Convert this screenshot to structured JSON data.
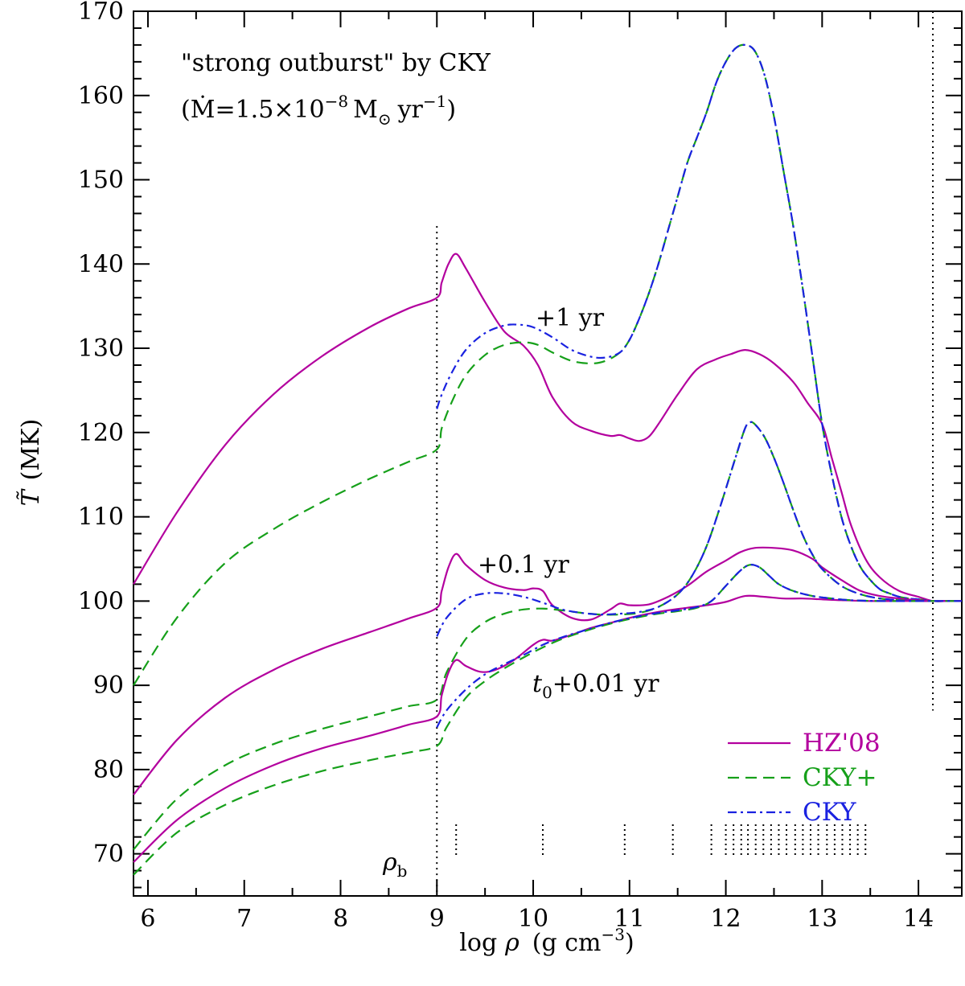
{
  "chart_data": {
    "type": "line",
    "title_line1": "\"strong outburst\" by CKY",
    "title_line2_prefix": "(",
    "title_mdot": "Ṁ",
    "title_eq": "=1.5×10",
    "title_exp": "−8",
    "title_msun": "M",
    "title_msun_sub": "⊙",
    "title_yr": "yr",
    "title_yr_exp": "−1",
    "title_close": ")",
    "xlabel_prefix": "log",
    "xlabel_rho": "ρ",
    "xlabel_units": "(g cm",
    "xlabel_exp": "−3",
    "xlabel_close": ")",
    "ylabel_symbol": "T̃",
    "ylabel_units": "(MK)",
    "xlim": [
      5.85,
      14.45
    ],
    "ylim": [
      65,
      170
    ],
    "x_ticks": [
      "6",
      "7",
      "8",
      "9",
      "10",
      "11",
      "12",
      "13",
      "14"
    ],
    "y_ticks": [
      "70",
      "80",
      "90",
      "100",
      "110",
      "120",
      "130",
      "140",
      "150",
      "160",
      "170"
    ],
    "annotations": {
      "t1": "+1 yr",
      "t01": "+0.1 yr",
      "t001_t": "t",
      "t001_sub": "0",
      "t001_rest": "+0.01 yr",
      "rho_b": "ρ",
      "rho_b_sub": "b"
    },
    "vlines_x": [
      9.0,
      14.15
    ],
    "ticks_rho_x": [
      9.2,
      10.1,
      10.95,
      11.45,
      11.85,
      12.0,
      12.08,
      12.16,
      12.23,
      12.31,
      12.39,
      12.47,
      12.55,
      12.63,
      12.72,
      12.8,
      12.88,
      12.96,
      13.05,
      13.13,
      13.21,
      13.29,
      13.37,
      13.45
    ],
    "legend": [
      {
        "label": "HZ'08",
        "color": "#b3009e",
        "style": "solid"
      },
      {
        "label": "CKY+",
        "color": "#16a01a",
        "style": "dashed"
      },
      {
        "label": "CKY",
        "color": "#1a22e0",
        "style": "dashdot"
      }
    ],
    "series": [
      {
        "name": "HZ'08 +1 yr",
        "style": "solid",
        "color": "#b3009e",
        "x": [
          5.85,
          6.3,
          6.8,
          7.3,
          7.8,
          8.3,
          8.7,
          9.0,
          9.05,
          9.12,
          9.2,
          9.3,
          9.5,
          9.7,
          9.9,
          10.05,
          10.2,
          10.4,
          10.6,
          10.8,
          10.9,
          11.0,
          11.1,
          11.2,
          11.3,
          11.5,
          11.7,
          11.9,
          12.05,
          12.2,
          12.35,
          12.5,
          12.7,
          12.85,
          13.0,
          13.1,
          13.2,
          13.3,
          13.45,
          13.6,
          13.8,
          14.0,
          14.15,
          14.3,
          14.45
        ],
        "y": [
          102,
          110.5,
          118.5,
          124.5,
          129,
          132.5,
          134.7,
          136,
          137.8,
          140,
          141.2,
          139.5,
          135.5,
          132,
          130.3,
          128,
          124.2,
          121.3,
          120.2,
          119.6,
          119.7,
          119.3,
          119,
          119.5,
          121,
          124.5,
          127.5,
          128.7,
          129.3,
          129.8,
          129.3,
          128.2,
          126,
          123.5,
          121,
          117,
          113,
          109,
          105,
          102.8,
          101.2,
          100.5,
          100,
          100,
          100
        ]
      },
      {
        "name": "CKY+ +1 yr",
        "style": "dashed",
        "color": "#16a01a",
        "x": [
          5.85,
          6.3,
          6.8,
          7.3,
          7.8,
          8.3,
          8.7,
          9.0,
          9.05,
          9.15,
          9.3,
          9.5,
          9.7,
          9.9,
          10.05,
          10.2,
          10.4,
          10.6,
          10.75,
          10.9,
          11.0,
          11.1,
          11.2,
          11.3,
          11.4,
          11.5,
          11.6,
          11.7,
          11.8,
          11.9,
          12.0,
          12.1,
          12.2,
          12.3,
          12.4,
          12.5,
          12.6,
          12.7,
          12.8,
          12.9,
          13.0,
          13.1,
          13.2,
          13.3,
          13.4,
          13.5,
          13.6,
          13.7,
          13.8,
          13.9,
          14.0,
          14.15,
          14.3,
          14.45
        ],
        "y": [
          90,
          98,
          104.5,
          108.5,
          111.7,
          114.5,
          116.5,
          118,
          120.5,
          123.5,
          126.8,
          129.2,
          130.4,
          130.7,
          130.4,
          129.5,
          128.5,
          128.2,
          128.5,
          129.5,
          131,
          133.5,
          136.5,
          140,
          144,
          148,
          152,
          155,
          158,
          161.5,
          164,
          165.6,
          166,
          165.3,
          162.5,
          157.5,
          151,
          144.5,
          137,
          129,
          121,
          115,
          110,
          106.5,
          104,
          102.5,
          101.4,
          100.9,
          100.5,
          100.3,
          100.2,
          100,
          100,
          100
        ]
      },
      {
        "name": "CKY +1 yr",
        "style": "dashdot",
        "color": "#1a22e0",
        "x": [
          9.0,
          9.05,
          9.15,
          9.3,
          9.5,
          9.7,
          9.85,
          10.0,
          10.2,
          10.4,
          10.6,
          10.75,
          10.9,
          11.0,
          11.1,
          11.2,
          11.3,
          11.4,
          11.5,
          11.6,
          11.7,
          11.8,
          11.9,
          12.0,
          12.1,
          12.2,
          12.3,
          12.4,
          12.5,
          12.6,
          12.7,
          12.8,
          12.9,
          13.0,
          13.1,
          13.2,
          13.3,
          13.4,
          13.5,
          13.6,
          13.7,
          13.8,
          13.9,
          14.0,
          14.15,
          14.3,
          14.45
        ],
        "y": [
          122.8,
          124.5,
          127,
          129.8,
          131.8,
          132.7,
          132.8,
          132.5,
          131.3,
          129.8,
          129,
          128.9,
          129.5,
          131,
          133.5,
          136.5,
          140,
          144,
          148,
          152,
          155,
          158,
          161.5,
          164,
          165.6,
          166,
          165.3,
          162.5,
          157.5,
          151,
          144.5,
          137,
          129,
          121,
          115,
          110,
          106.5,
          104,
          102.5,
          101.4,
          100.9,
          100.5,
          100.3,
          100.2,
          100,
          100,
          100
        ]
      },
      {
        "name": "HZ'08 +0.1 yr",
        "style": "solid",
        "color": "#b3009e",
        "x": [
          5.85,
          6.3,
          6.8,
          7.3,
          7.8,
          8.3,
          8.7,
          9.0,
          9.05,
          9.12,
          9.2,
          9.3,
          9.5,
          9.7,
          9.9,
          10.0,
          10.1,
          10.2,
          10.4,
          10.6,
          10.8,
          10.9,
          11.0,
          11.2,
          11.4,
          11.6,
          11.8,
          12.0,
          12.15,
          12.3,
          12.5,
          12.7,
          12.9,
          13.0,
          13.2,
          13.4,
          13.6,
          13.8,
          14.0,
          14.15,
          14.3,
          14.45
        ],
        "y": [
          77,
          83.5,
          88.5,
          91.8,
          94.3,
          96.3,
          97.9,
          99.2,
          101.2,
          104,
          105.6,
          104.3,
          102.5,
          101.6,
          101.3,
          101.5,
          101.2,
          99.5,
          98,
          97.8,
          99,
          99.7,
          99.5,
          99.6,
          100.5,
          101.8,
          103.5,
          104.8,
          105.8,
          106.3,
          106.3,
          106,
          105,
          104,
          102.5,
          101.2,
          100.6,
          100.3,
          100.1,
          100,
          100,
          100
        ]
      },
      {
        "name": "CKY+ +0.1 yr",
        "style": "dashed",
        "color": "#16a01a",
        "x": [
          5.85,
          6.3,
          6.8,
          7.3,
          7.8,
          8.3,
          8.7,
          9.0,
          9.1,
          9.3,
          9.5,
          9.7,
          9.9,
          10.1,
          10.3,
          10.5,
          10.7,
          10.9,
          11.1,
          11.3,
          11.5,
          11.65,
          11.8,
          11.95,
          12.1,
          12.2,
          12.25,
          12.3,
          12.4,
          12.5,
          12.6,
          12.7,
          12.8,
          12.9,
          13.0,
          13.2,
          13.4,
          13.6,
          13.8,
          14.0,
          14.15,
          14.3,
          14.45
        ],
        "y": [
          70.5,
          76.5,
          80.5,
          83,
          84.8,
          86.3,
          87.5,
          88.3,
          91.5,
          95.5,
          97.5,
          98.5,
          99,
          99.1,
          98.9,
          98.6,
          98.4,
          98.4,
          98.6,
          99.3,
          100.8,
          103,
          106.5,
          111.5,
          117,
          120.5,
          121.2,
          121,
          119.5,
          117,
          114,
          110.8,
          107.8,
          105.5,
          103.8,
          101.8,
          100.8,
          100.3,
          100.1,
          100,
          100,
          100,
          100
        ]
      },
      {
        "name": "CKY +0.1 yr",
        "style": "dashdot",
        "color": "#1a22e0",
        "x": [
          9.0,
          9.1,
          9.3,
          9.5,
          9.7,
          9.9,
          10.1,
          10.3,
          10.5,
          10.7,
          10.9,
          11.1,
          11.3,
          11.5,
          11.65,
          11.8,
          11.95,
          12.1,
          12.2,
          12.25,
          12.3,
          12.4,
          12.5,
          12.6,
          12.7,
          12.8,
          12.9,
          13.0,
          13.2,
          13.4,
          13.6,
          13.8,
          14.0,
          14.15,
          14.3,
          14.45
        ],
        "y": [
          95.8,
          98,
          100.2,
          100.9,
          100.9,
          100.5,
          99.8,
          99,
          98.6,
          98.4,
          98.5,
          98.7,
          99.3,
          100.8,
          103,
          106.5,
          111.5,
          117,
          120.5,
          121.2,
          121,
          119.5,
          117,
          114,
          110.8,
          107.8,
          105.5,
          103.8,
          101.8,
          100.8,
          100.3,
          100.1,
          100,
          100,
          100,
          100
        ]
      },
      {
        "name": "HZ'08 t0+0.01 yr",
        "style": "solid",
        "color": "#b3009e",
        "x": [
          5.85,
          6.3,
          6.8,
          7.3,
          7.8,
          8.3,
          8.7,
          9.0,
          9.05,
          9.12,
          9.2,
          9.3,
          9.45,
          9.6,
          9.8,
          10.0,
          10.1,
          10.2,
          10.4,
          10.6,
          10.8,
          11.0,
          11.2,
          11.4,
          11.6,
          11.8,
          12.0,
          12.2,
          12.4,
          12.6,
          12.8,
          13.0,
          13.2,
          13.5,
          13.8,
          14.15,
          14.45
        ],
        "y": [
          69,
          74,
          77.8,
          80.5,
          82.5,
          84,
          85.3,
          86.3,
          88.8,
          91.5,
          93,
          92.3,
          91.6,
          91.8,
          93,
          94.8,
          95.4,
          95.3,
          96,
          96.8,
          97.4,
          98,
          98.5,
          98.9,
          99.2,
          99.5,
          99.9,
          100.6,
          100.5,
          100.3,
          100.3,
          100.2,
          100.1,
          100,
          100,
          100,
          100
        ]
      },
      {
        "name": "CKY+ t0+0.01 yr",
        "style": "dashed",
        "color": "#16a01a",
        "x": [
          5.85,
          6.3,
          6.8,
          7.3,
          7.8,
          8.3,
          8.7,
          9.0,
          9.1,
          9.3,
          9.5,
          9.7,
          9.9,
          10.1,
          10.3,
          10.5,
          10.7,
          10.9,
          11.1,
          11.3,
          11.5,
          11.7,
          11.85,
          12.0,
          12.15,
          12.25,
          12.35,
          12.45,
          12.55,
          12.7,
          12.9,
          13.1,
          13.3,
          13.6,
          14.0,
          14.15,
          14.45
        ],
        "y": [
          67.5,
          72.5,
          75.8,
          78.1,
          79.8,
          81.1,
          82,
          82.8,
          85,
          88.5,
          90.5,
          92,
          93.3,
          94.5,
          95.5,
          96.3,
          97,
          97.6,
          98.1,
          98.5,
          98.8,
          99.2,
          100,
          101.8,
          103.6,
          104.3,
          104,
          103,
          102,
          101.2,
          100.6,
          100.3,
          100.1,
          100,
          100,
          100,
          100
        ]
      },
      {
        "name": "CKY t0+0.01 yr",
        "style": "dashdot",
        "color": "#1a22e0",
        "x": [
          9.0,
          9.1,
          9.3,
          9.5,
          9.7,
          9.9,
          10.1,
          10.3,
          10.5,
          10.7,
          10.9,
          11.1,
          11.3,
          11.5,
          11.7,
          11.85,
          12.0,
          12.15,
          12.25,
          12.35,
          12.45,
          12.55,
          12.7,
          12.9,
          13.1,
          13.3,
          13.6,
          14.0,
          14.15,
          14.45
        ],
        "y": [
          85,
          87,
          89.5,
          91.3,
          92.5,
          93.6,
          94.8,
          95.7,
          96.4,
          97.1,
          97.7,
          98.2,
          98.6,
          98.9,
          99.3,
          100,
          101.8,
          103.6,
          104.3,
          104,
          103,
          102,
          101.2,
          100.6,
          100.3,
          100.1,
          100,
          100,
          100,
          100
        ]
      }
    ]
  }
}
